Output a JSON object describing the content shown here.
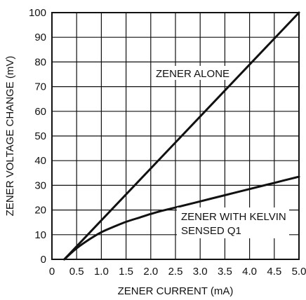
{
  "chart_data": {
    "type": "line",
    "title": "",
    "xlabel": "ZENER CURRENT (mA)",
    "ylabel": "ZENER VOLTAGE CHANGE (mV)",
    "xlim": [
      0,
      5.0
    ],
    "ylim": [
      0,
      100
    ],
    "x_ticks": [
      "0",
      "0.5",
      "1.0",
      "1.5",
      "2.0",
      "2.5",
      "3.0",
      "3.5",
      "4.0",
      "4.5",
      "5.0"
    ],
    "y_ticks": [
      "0",
      "10",
      "20",
      "30",
      "40",
      "50",
      "60",
      "70",
      "80",
      "90",
      "100"
    ],
    "grid": true,
    "series": [
      {
        "annotation": "ZENER ALONE",
        "points": [
          [
            0.25,
            0
          ],
          [
            5.0,
            100
          ]
        ]
      },
      {
        "annotation_lines": [
          "ZENER WITH KELVIN",
          "SENSED Q1"
        ],
        "points": [
          [
            0.25,
            0
          ],
          [
            0.5,
            4.5
          ],
          [
            0.75,
            8
          ],
          [
            1.0,
            11
          ],
          [
            1.25,
            13.2
          ],
          [
            1.5,
            15.2
          ],
          [
            1.75,
            16.8
          ],
          [
            2.0,
            18.4
          ],
          [
            2.25,
            19.8
          ],
          [
            2.5,
            21
          ],
          [
            3.0,
            23.5
          ],
          [
            3.5,
            26
          ],
          [
            4.0,
            28.5
          ],
          [
            4.5,
            31
          ],
          [
            5.0,
            33.5
          ]
        ]
      }
    ]
  }
}
